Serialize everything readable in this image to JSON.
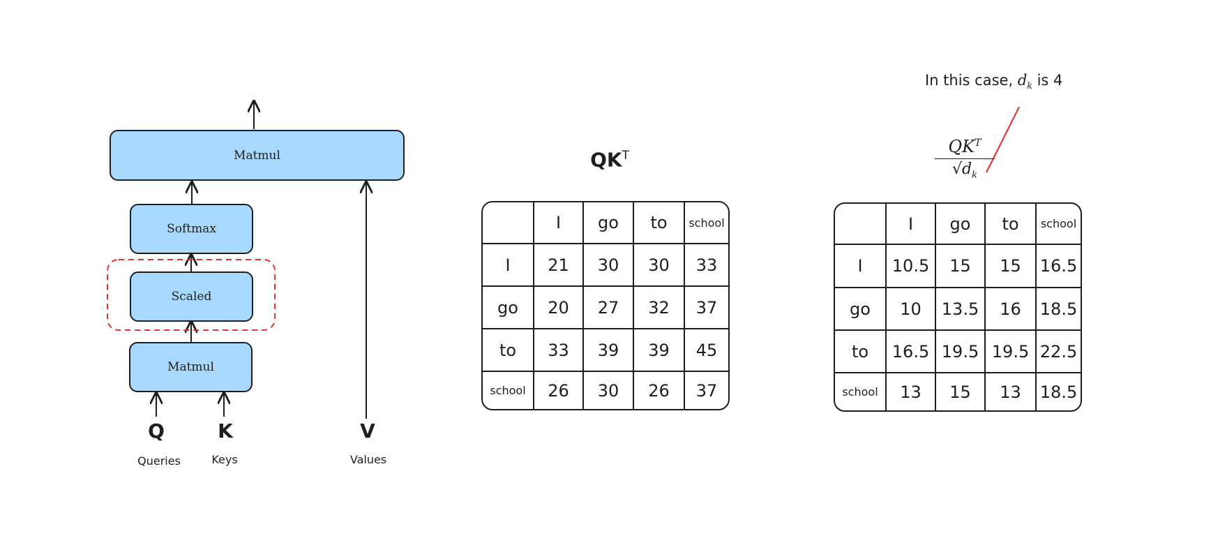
{
  "diagram": {
    "blocks": {
      "matmul_top": "Matmul",
      "softmax": "Softmax",
      "scaled": "Scaled",
      "matmul_bottom": "Matmul"
    },
    "inputs": {
      "q_symbol": "Q",
      "q_label": "Queries",
      "k_symbol": "K",
      "k_label": "Keys",
      "v_symbol": "V",
      "v_label": "Values"
    },
    "colors": {
      "block_fill": "#a8d8fb",
      "highlight": "#e03131"
    }
  },
  "qk_table": {
    "title_base": "QK",
    "title_sup": "T",
    "header": [
      "",
      "I",
      "go",
      "to",
      "school"
    ],
    "rows": [
      [
        "I",
        "21",
        "30",
        "30",
        "33"
      ],
      [
        "go",
        "20",
        "27",
        "32",
        "37"
      ],
      [
        "to",
        "33",
        "39",
        "39",
        "45"
      ],
      [
        "school",
        "26",
        "30",
        "26",
        "37"
      ]
    ]
  },
  "scaled_table": {
    "formula_num": "QK",
    "formula_num_sup": "T",
    "formula_den": "√d",
    "formula_den_sub": "k",
    "header": [
      "",
      "I",
      "go",
      "to",
      "school"
    ],
    "rows": [
      [
        "I",
        "10.5",
        "15",
        "15",
        "16.5"
      ],
      [
        "go",
        "10",
        "13.5",
        "16",
        "18.5"
      ],
      [
        "to",
        "16.5",
        "19.5",
        "19.5",
        "22.5"
      ],
      [
        "school",
        "13",
        "15",
        "13",
        "18.5"
      ]
    ]
  },
  "annotation": {
    "prefix": "In this case,",
    "symbol": "d",
    "symbol_sub": "k",
    "suffix": "is 4"
  }
}
